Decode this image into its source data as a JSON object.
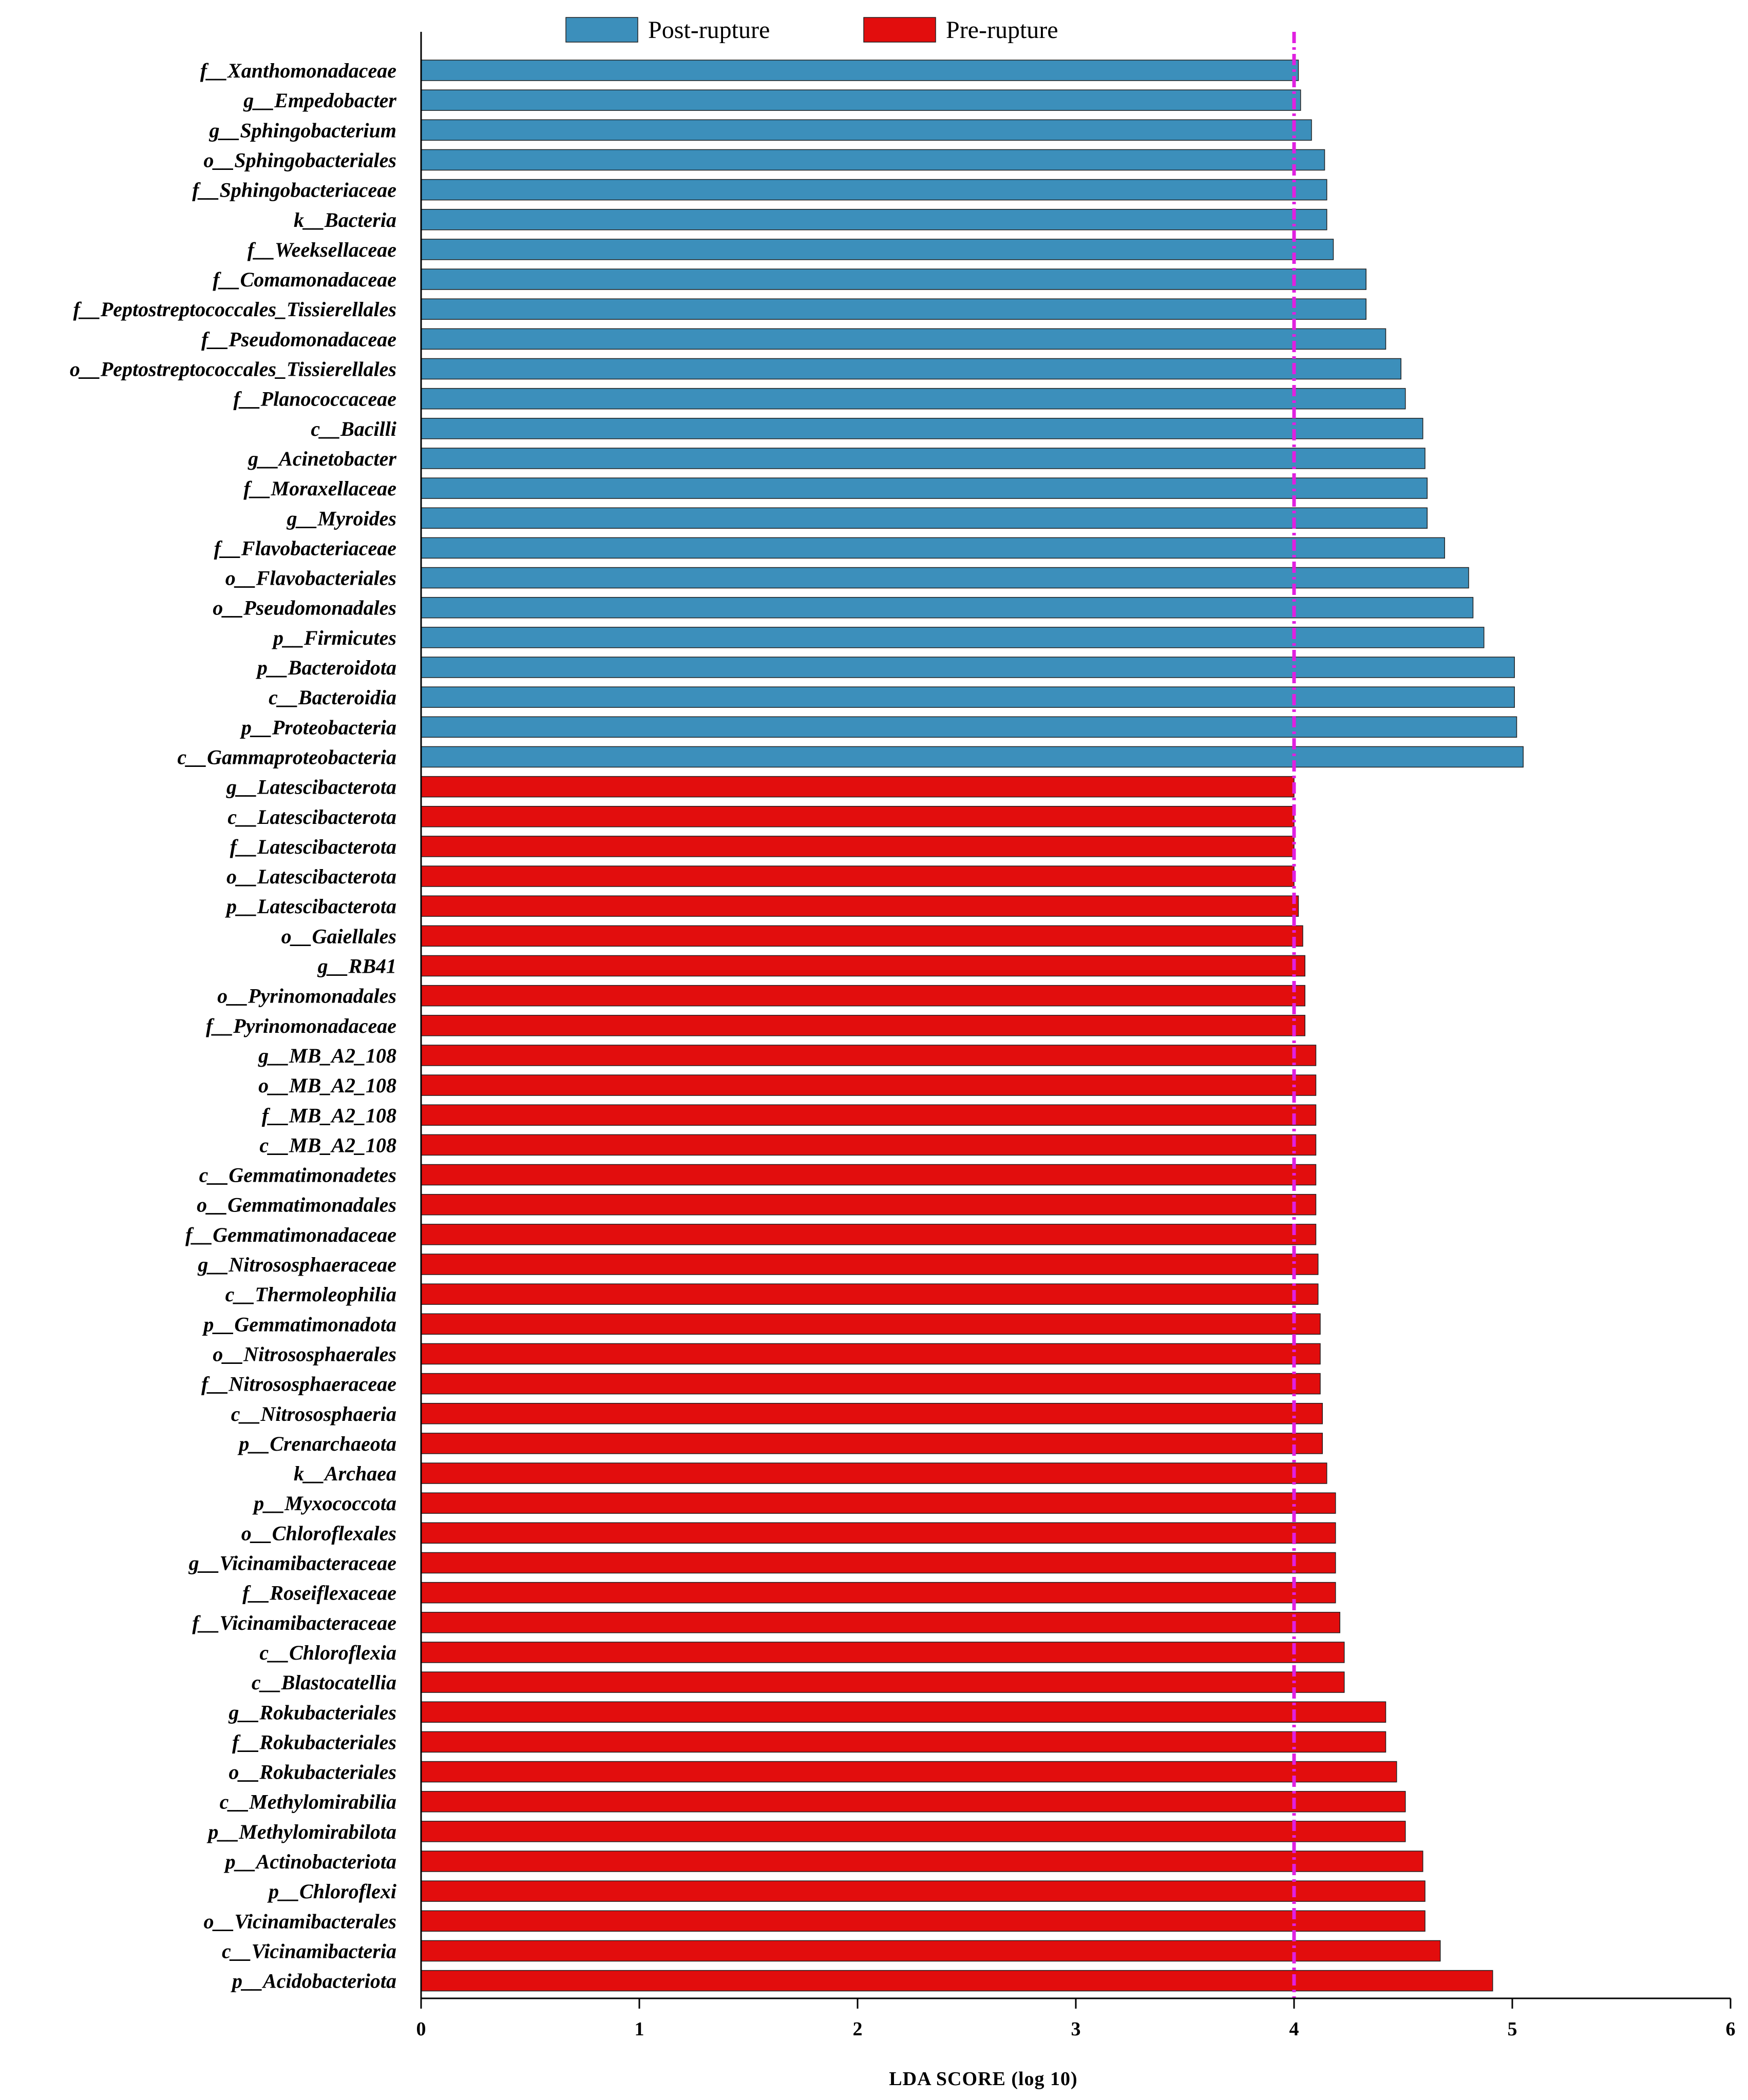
{
  "chart_data": {
    "type": "bar",
    "orientation": "horizontal",
    "xlabel": "LDA SCORE (log 10)",
    "xlim": [
      0,
      6
    ],
    "xticks": [
      0,
      1,
      2,
      3,
      4,
      5,
      6
    ],
    "threshold": 4,
    "threshold_color": "#e020e0",
    "legend": [
      {
        "name": "Post-rupture",
        "color": "#3c8fbb"
      },
      {
        "name": "Pre-rupture",
        "color": "#e20d0d"
      }
    ],
    "series": [
      {
        "name": "Post-rupture",
        "color": "#3c8fbb",
        "categories": [
          "f__Xanthomonadaceae",
          "g__Empedobacter",
          "g__Sphingobacterium",
          "o__Sphingobacteriales",
          "f__Sphingobacteriaceae",
          "k__Bacteria",
          "f__Weeksellaceae",
          "f__Comamonadaceae",
          "f__Peptostreptococcales_Tissierellales",
          "f__Pseudomonadaceae",
          "o__Peptostreptococcales_Tissierellales",
          "f__Planococcaceae",
          "c__Bacilli",
          "g__Acinetobacter",
          "f__Moraxellaceae",
          "g__Myroides",
          "f__Flavobacteriaceae",
          "o__Flavobacteriales",
          "o__Pseudomonadales",
          "p__Firmicutes",
          "p__Bacteroidota",
          "c__Bacteroidia",
          "p__Proteobacteria",
          "c__Gammaproteobacteria"
        ],
        "values": [
          4.02,
          4.03,
          4.08,
          4.14,
          4.15,
          4.15,
          4.18,
          4.33,
          4.33,
          4.42,
          4.49,
          4.51,
          4.59,
          4.6,
          4.61,
          4.61,
          4.69,
          4.8,
          4.82,
          4.87,
          5.01,
          5.01,
          5.02,
          5.05
        ]
      },
      {
        "name": "Pre-rupture",
        "color": "#e20d0d",
        "categories": [
          "g__Latescibacterota",
          "c__Latescibacterota",
          "f__Latescibacterota",
          "o__Latescibacterota",
          "p__Latescibacterota",
          "o__Gaiellales",
          "g__RB41",
          "o__Pyrinomonadales",
          "f__Pyrinomonadaceae",
          "g__MB_A2_108",
          "o__MB_A2_108",
          "f__MB_A2_108",
          "c__MB_A2_108",
          "c__Gemmatimonadetes",
          "o__Gemmatimonadales",
          "f__Gemmatimonadaceae",
          "g__Nitrososphaeraceae",
          "c__Thermoleophilia",
          "p__Gemmatimonadota",
          "o__Nitrososphaerales",
          "f__Nitrososphaeraceae",
          "c__Nitrososphaeria",
          "p__Crenarchaeota",
          "k__Archaea",
          "p__Myxococcota",
          "o__Chloroflexales",
          "g__Vicinamibacteraceae",
          "f__Roseiflexaceae",
          "f__Vicinamibacteraceae",
          "c__Chloroflexia",
          "c__Blastocatellia",
          "g__Rokubacteriales",
          "f__Rokubacteriales",
          "o__Rokubacteriales",
          "c__Methylomirabilia",
          "p__Methylomirabilota",
          "p__Actinobacteriota",
          "p__Chloroflexi",
          "o__Vicinamibacterales",
          "c__Vicinamibacteria",
          "p__Acidobacteriota"
        ],
        "values": [
          4.0,
          4.0,
          4.0,
          4.0,
          4.02,
          4.04,
          4.05,
          4.05,
          4.05,
          4.1,
          4.1,
          4.1,
          4.1,
          4.1,
          4.1,
          4.1,
          4.11,
          4.11,
          4.12,
          4.12,
          4.12,
          4.13,
          4.13,
          4.15,
          4.19,
          4.19,
          4.19,
          4.19,
          4.21,
          4.23,
          4.23,
          4.42,
          4.42,
          4.47,
          4.51,
          4.51,
          4.59,
          4.6,
          4.6,
          4.67,
          4.91
        ]
      }
    ]
  }
}
